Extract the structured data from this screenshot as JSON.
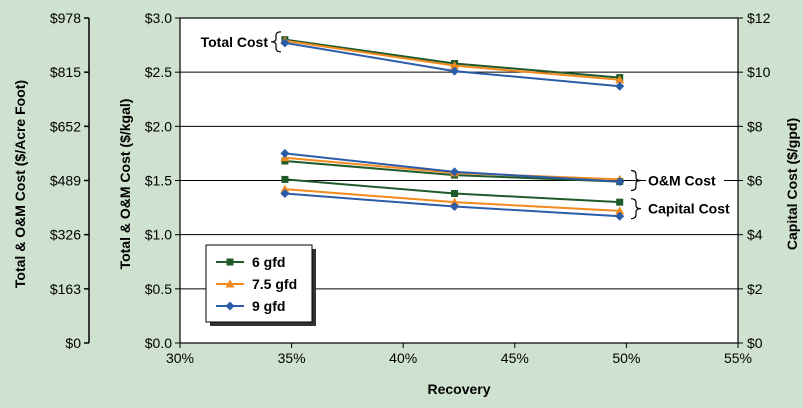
{
  "colors": {
    "background": "#cfe1cf",
    "plot": "#ffffff",
    "series": [
      "#1f5a2a",
      "#f28a1e",
      "#2b5ca8"
    ]
  },
  "chart_data": {
    "type": "line",
    "xlabel": "Recovery",
    "ylabel": "Total & O&M Cost ($/kgal)",
    "ylabel_outer": "Total & O&M Cost ($/Acre Foot)",
    "ylabel_right": "Capital Cost ($/gpd)",
    "xlim": [
      30,
      55
    ],
    "ylim": [
      0,
      3.0
    ],
    "ylim_right": [
      0,
      12
    ],
    "grid": "horizontal",
    "legend_placement": "bottom-left",
    "x_ticks": [
      "30%",
      "35%",
      "40%",
      "45%",
      "50%",
      "55%"
    ],
    "y_ticks": [
      "$0.0",
      "$0.5",
      "$1.0",
      "$1.5",
      "$2.0",
      "$2.5",
      "$3.0"
    ],
    "outer_ticks": [
      "$0",
      "$163",
      "$326",
      "$489",
      "$652",
      "$815",
      "$978"
    ],
    "right_ticks": [
      "$0",
      "$2",
      "$4",
      "$6",
      "$8",
      "$10",
      "$12"
    ],
    "x": [
      34.7,
      42.3,
      49.7
    ],
    "series": [
      {
        "name": "6 gfd",
        "total": [
          2.8,
          2.58,
          2.45
        ],
        "om": [
          1.68,
          1.55,
          1.49
        ],
        "capital": [
          1.51,
          1.38,
          1.3
        ]
      },
      {
        "name": "7.5 gfd",
        "total": [
          2.79,
          2.56,
          2.43
        ],
        "om": [
          1.71,
          1.57,
          1.51
        ],
        "capital": [
          1.42,
          1.3,
          1.22
        ]
      },
      {
        "name": "9 gfd",
        "total": [
          2.77,
          2.51,
          2.37
        ],
        "om": [
          1.75,
          1.58,
          1.49
        ],
        "capital": [
          1.38,
          1.26,
          1.17
        ]
      }
    ],
    "annotations": [
      "Total Cost",
      "O&M Cost",
      "Capital Cost"
    ]
  }
}
